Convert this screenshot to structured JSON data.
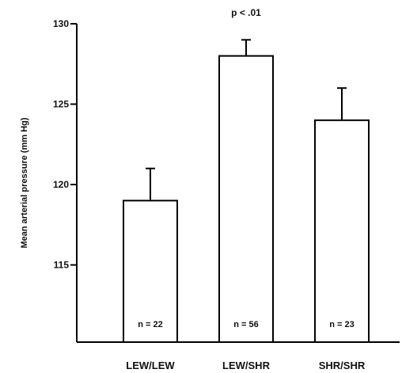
{
  "chart_data": {
    "type": "bar",
    "title": "",
    "xlabel": "",
    "ylabel": "Mean arterial pressure (mm Hg)",
    "ylim": [
      110.2,
      130
    ],
    "yticks": [
      115,
      120,
      125,
      130
    ],
    "ytick_labels": [
      "115",
      "120",
      "125",
      "130"
    ],
    "categories": [
      "LEW/LEW",
      "LEW/SHR",
      "SHR/SHR"
    ],
    "values": [
      119,
      128,
      124
    ],
    "error_upper": [
      2,
      1,
      2
    ],
    "n_labels": [
      "n = 22",
      "n = 56",
      "n = 23"
    ],
    "annotation": {
      "text": "p < .01",
      "category_index": 1
    },
    "grid": false,
    "legend": false
  }
}
